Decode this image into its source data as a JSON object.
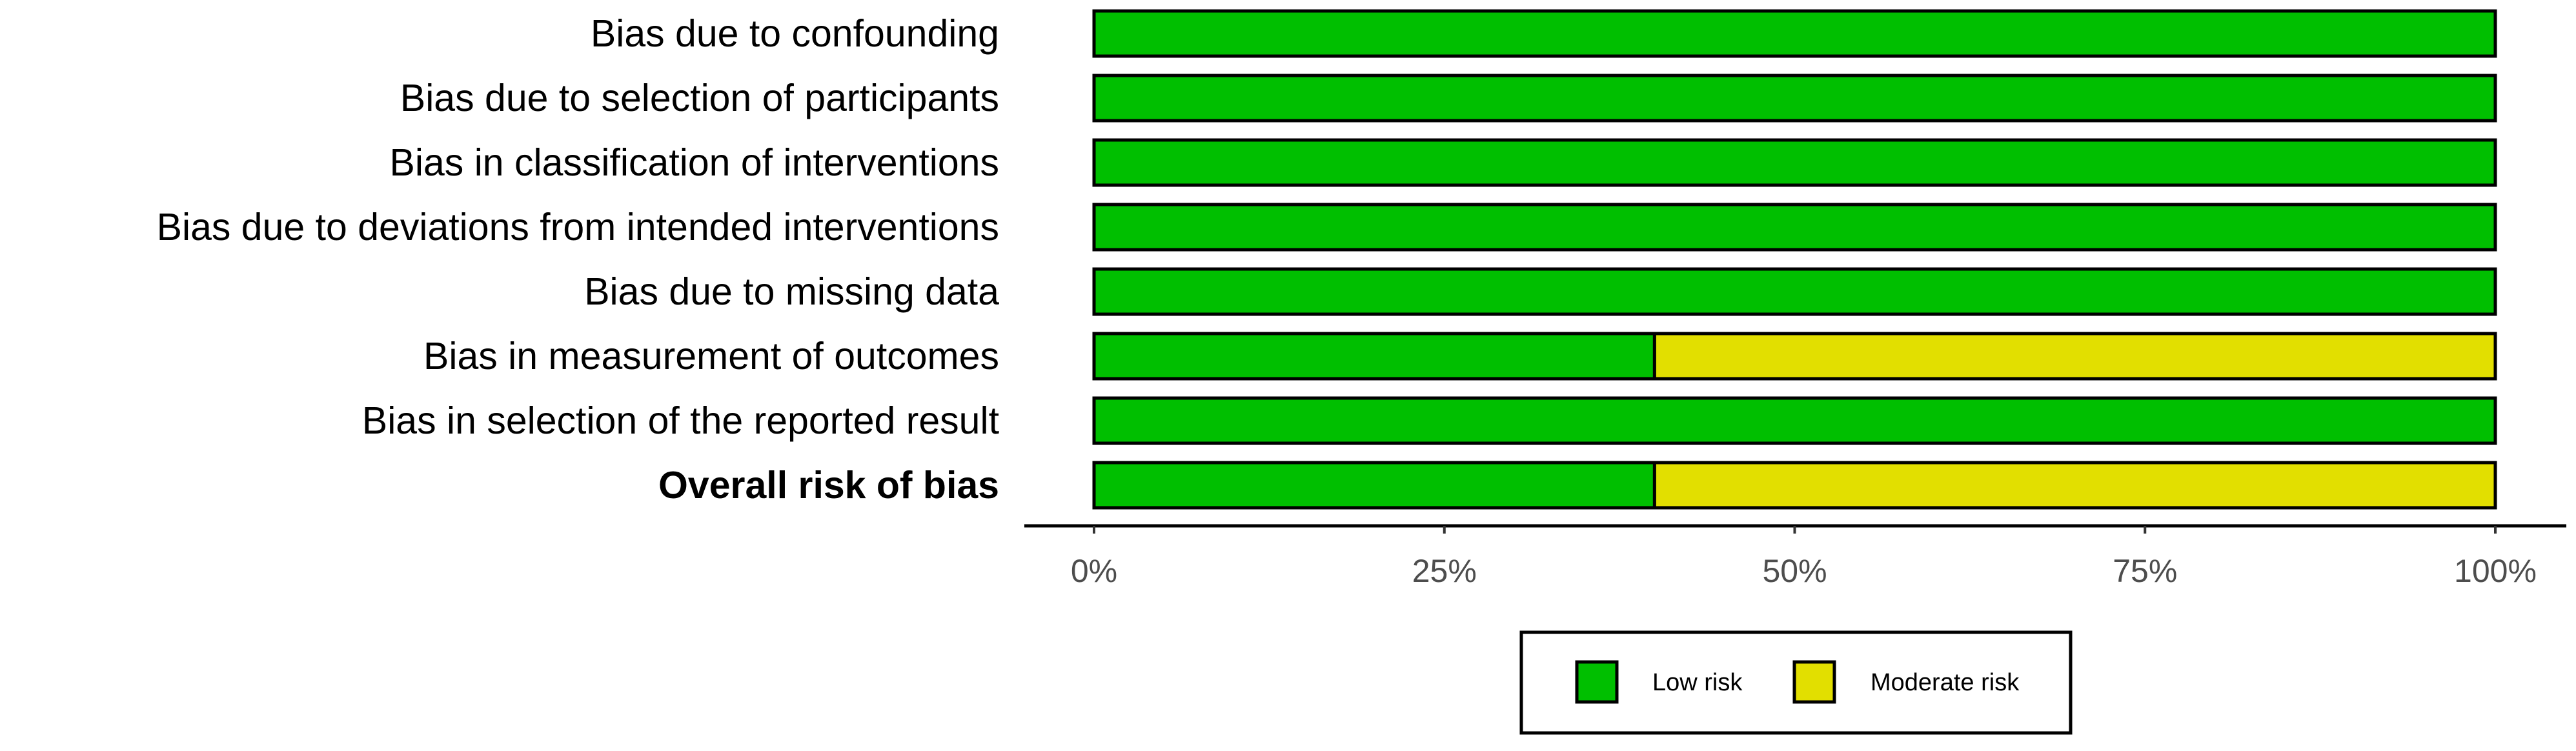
{
  "chart_data": {
    "type": "bar",
    "orientation": "horizontal",
    "stacked": true,
    "categories": [
      "Bias due to confounding",
      "Bias due to selection of participants",
      "Bias in classification of interventions",
      "Bias due to deviations from intended interventions",
      "Bias due to missing data",
      "Bias in measurement of outcomes",
      "Bias in selection of the reported result",
      "Overall risk of bias"
    ],
    "bold_categories": [
      "Overall risk of bias"
    ],
    "series": [
      {
        "name": "Low risk",
        "color": "#00bf00",
        "values": [
          100,
          100,
          100,
          100,
          100,
          40,
          100,
          40
        ]
      },
      {
        "name": "Moderate risk",
        "color": "#e2df00",
        "values": [
          0,
          0,
          0,
          0,
          0,
          60,
          0,
          60
        ]
      }
    ],
    "xlim": [
      0,
      100
    ],
    "x_ticks": [
      0,
      25,
      50,
      75,
      100
    ],
    "x_tick_labels": [
      "0%",
      "25%",
      "50%",
      "75%",
      "100%"
    ],
    "xlabel": "",
    "ylabel": "",
    "title": "",
    "grid": false,
    "legend_position": "bottom"
  }
}
